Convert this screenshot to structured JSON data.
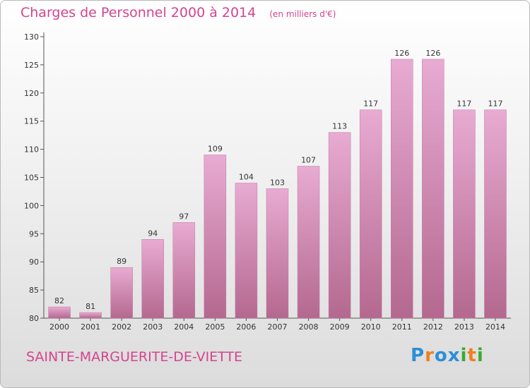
{
  "header": {
    "title": "Charges de Personnel 2000 à 2014",
    "subtitle": "(en milliers d'€)"
  },
  "footer": {
    "commune": "SAINTE-MARGUERITE-DE-VIETTE",
    "brand_letters": [
      "P",
      "r",
      "o",
      "x",
      "i",
      "t",
      "i"
    ],
    "brand_colors": [
      "#2c8fd6",
      "#f07f1e",
      "#2c8fd6",
      "#2c8fd6",
      "#3aaa35",
      "#f07f1e",
      "#3aaa35"
    ]
  },
  "chart_data": {
    "type": "bar",
    "categories": [
      "2000",
      "2001",
      "2002",
      "2003",
      "2004",
      "2005",
      "2006",
      "2007",
      "2008",
      "2009",
      "2010",
      "2011",
      "2012",
      "2013",
      "2014"
    ],
    "values": [
      82,
      81,
      89,
      94,
      97,
      109,
      104,
      103,
      107,
      113,
      117,
      126,
      126,
      117,
      117
    ],
    "title": "Charges de Personnel 2000 à 2014",
    "subtitle": "(en milliers d'€)",
    "ylim": [
      80,
      130
    ],
    "yticks": [
      80,
      85,
      90,
      95,
      100,
      105,
      110,
      115,
      120,
      125,
      130
    ],
    "grid": false,
    "bar_color": "#d98ab8"
  }
}
